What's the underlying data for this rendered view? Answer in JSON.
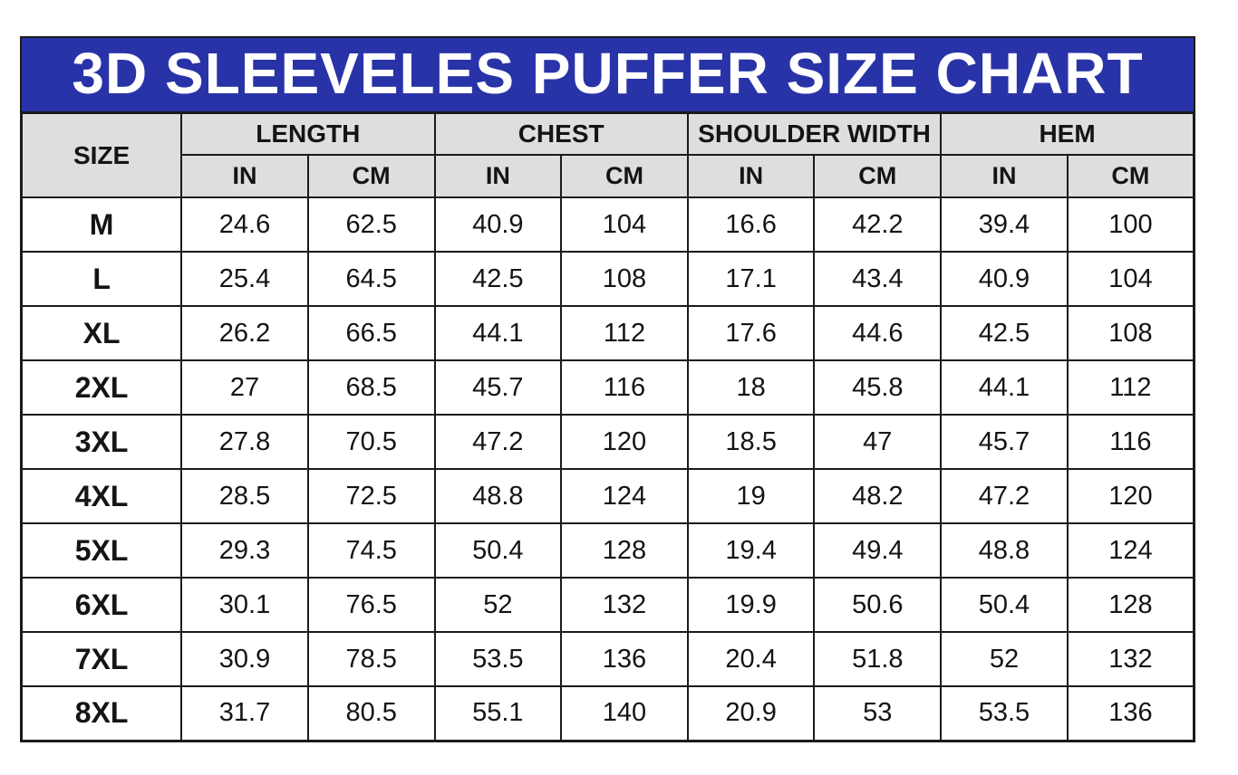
{
  "title": "3D SLEEVELES PUFFER SIZE CHART",
  "colors": {
    "banner_bg": "#2933A8",
    "banner_text": "#FFFFFF",
    "header_bg": "#DEDEDE",
    "grid_line": "#1B1B1B",
    "cell_bg": "#FFFFFF",
    "text": "#141414"
  },
  "table": {
    "size_header": "SIZE",
    "groups": [
      {
        "label": "LENGTH"
      },
      {
        "label": "CHEST"
      },
      {
        "label": "SHOULDER WIDTH"
      },
      {
        "label": "HEM"
      }
    ],
    "unit_headers": [
      "IN",
      "CM",
      "IN",
      "CM",
      "IN",
      "CM",
      "IN",
      "CM"
    ],
    "rows": [
      {
        "size": "M",
        "values": [
          "24.6",
          "62.5",
          "40.9",
          "104",
          "16.6",
          "42.2",
          "39.4",
          "100"
        ]
      },
      {
        "size": "L",
        "values": [
          "25.4",
          "64.5",
          "42.5",
          "108",
          "17.1",
          "43.4",
          "40.9",
          "104"
        ]
      },
      {
        "size": "XL",
        "values": [
          "26.2",
          "66.5",
          "44.1",
          "112",
          "17.6",
          "44.6",
          "42.5",
          "108"
        ]
      },
      {
        "size": "2XL",
        "values": [
          "27",
          "68.5",
          "45.7",
          "116",
          "18",
          "45.8",
          "44.1",
          "112"
        ]
      },
      {
        "size": "3XL",
        "values": [
          "27.8",
          "70.5",
          "47.2",
          "120",
          "18.5",
          "47",
          "45.7",
          "116"
        ]
      },
      {
        "size": "4XL",
        "values": [
          "28.5",
          "72.5",
          "48.8",
          "124",
          "19",
          "48.2",
          "47.2",
          "120"
        ]
      },
      {
        "size": "5XL",
        "values": [
          "29.3",
          "74.5",
          "50.4",
          "128",
          "19.4",
          "49.4",
          "48.8",
          "124"
        ]
      },
      {
        "size": "6XL",
        "values": [
          "30.1",
          "76.5",
          "52",
          "132",
          "19.9",
          "50.6",
          "50.4",
          "128"
        ]
      },
      {
        "size": "7XL",
        "values": [
          "30.9",
          "78.5",
          "53.5",
          "136",
          "20.4",
          "51.8",
          "52",
          "132"
        ]
      },
      {
        "size": "8XL",
        "values": [
          "31.7",
          "80.5",
          "55.1",
          "140",
          "20.9",
          "53",
          "53.5",
          "136"
        ]
      }
    ]
  },
  "chart_data": {
    "type": "table",
    "title": "3D SLEEVELES PUFFER SIZE CHART",
    "columns": [
      "SIZE",
      "LENGTH (IN)",
      "LENGTH (CM)",
      "CHEST (IN)",
      "CHEST (CM)",
      "SHOULDER WIDTH (IN)",
      "SHOULDER WIDTH (CM)",
      "HEM (IN)",
      "HEM (CM)"
    ],
    "rows": [
      [
        "M",
        24.6,
        62.5,
        40.9,
        104,
        16.6,
        42.2,
        39.4,
        100
      ],
      [
        "L",
        25.4,
        64.5,
        42.5,
        108,
        17.1,
        43.4,
        40.9,
        104
      ],
      [
        "XL",
        26.2,
        66.5,
        44.1,
        112,
        17.6,
        44.6,
        42.5,
        108
      ],
      [
        "2XL",
        27,
        68.5,
        45.7,
        116,
        18,
        45.8,
        44.1,
        112
      ],
      [
        "3XL",
        27.8,
        70.5,
        47.2,
        120,
        18.5,
        47,
        45.7,
        116
      ],
      [
        "4XL",
        28.5,
        72.5,
        48.8,
        124,
        19,
        48.2,
        47.2,
        120
      ],
      [
        "5XL",
        29.3,
        74.5,
        50.4,
        128,
        19.4,
        49.4,
        48.8,
        124
      ],
      [
        "6XL",
        30.1,
        76.5,
        52,
        132,
        19.9,
        50.6,
        50.4,
        128
      ],
      [
        "7XL",
        30.9,
        78.5,
        53.5,
        136,
        20.4,
        51.8,
        52,
        132
      ],
      [
        "8XL",
        31.7,
        80.5,
        55.1,
        140,
        20.9,
        53,
        53.5,
        136
      ]
    ]
  }
}
